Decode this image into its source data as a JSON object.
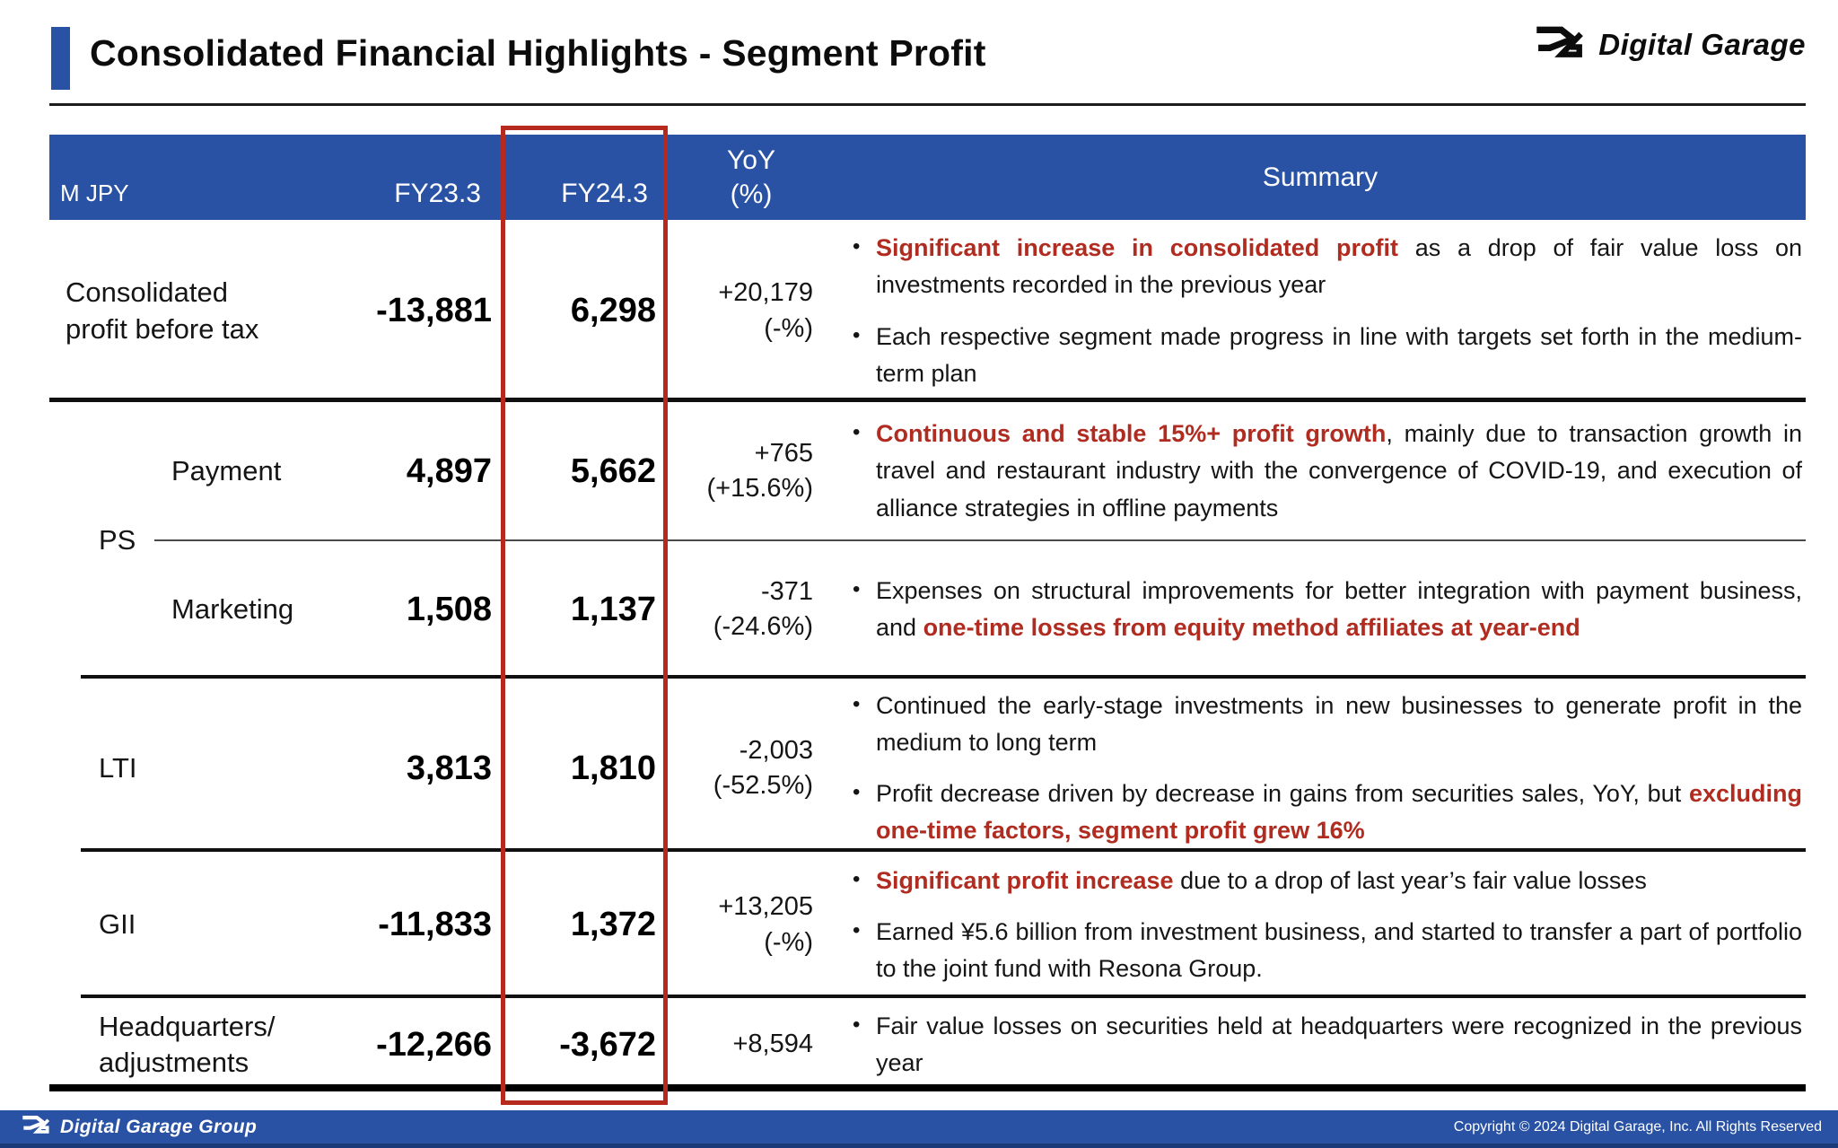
{
  "header": {
    "title": "Consolidated Financial Highlights - Segment Profit",
    "logo_text": "Digital Garage"
  },
  "table": {
    "unit_label": "M JPY",
    "columns": {
      "fy23": "FY23.3",
      "fy24": "FY24.3",
      "yoy_line1": "YoY",
      "yoy_line2": "(%)",
      "summary": "Summary"
    },
    "highlighted_column": "FY24.3",
    "ps_group_label": "PS",
    "rows": [
      {
        "label": "Consolidated\nprofit before tax",
        "fy23": "-13,881",
        "fy24": "6,298",
        "yoy": "+20,179",
        "yoy_pct": "(-%)",
        "bullets": [
          {
            "segments": [
              {
                "t": "Significant increase in consolidated profit",
                "red": true
              },
              {
                "t": " as a drop of fair value loss on investments recorded in the previous year"
              }
            ]
          },
          {
            "segments": [
              {
                "t": "Each respective segment made progress in line with targets set forth in the medium-term plan"
              }
            ]
          }
        ]
      },
      {
        "label": "Payment",
        "group": "PS",
        "fy23": "4,897",
        "fy24": "5,662",
        "yoy": "+765",
        "yoy_pct": "(+15.6%)",
        "bullets": [
          {
            "segments": [
              {
                "t": "Continuous and stable 15%+ profit growth",
                "red": true
              },
              {
                "t": ", mainly due to transaction growth in travel and restaurant industry with the convergence of COVID-19, and execution of alliance strategies in offline payments"
              }
            ]
          }
        ]
      },
      {
        "label": "Marketing",
        "group": "PS",
        "fy23": "1,508",
        "fy24": "1,137",
        "yoy": "-371",
        "yoy_pct": "(-24.6%)",
        "bullets": [
          {
            "segments": [
              {
                "t": "Expenses on structural improvements for better integration with payment business, and "
              },
              {
                "t": "one-time losses from equity method affiliates at year-end",
                "red": true
              }
            ]
          }
        ]
      },
      {
        "label": "LTI",
        "fy23": "3,813",
        "fy24": "1,810",
        "yoy": "-2,003",
        "yoy_pct": "(-52.5%)",
        "bullets": [
          {
            "segments": [
              {
                "t": "Continued the early-stage investments in new businesses to generate profit in the medium to long term"
              }
            ]
          },
          {
            "segments": [
              {
                "t": "Profit decrease driven by decrease in gains from securities sales, YoY, but "
              },
              {
                "t": "excluding one-time factors, segment profit grew 16%",
                "red": true
              }
            ]
          }
        ]
      },
      {
        "label": "GII",
        "fy23": "-11,833",
        "fy24": "1,372",
        "yoy": "+13,205",
        "yoy_pct": "(-%)",
        "bullets": [
          {
            "segments": [
              {
                "t": "Significant profit increase",
                "red": true
              },
              {
                "t": " due to a drop of last year’s fair value losses"
              }
            ]
          },
          {
            "segments": [
              {
                "t": "Earned ¥5.6 billion from investment business, and started to transfer a part of portfolio to the joint fund with Resona Group."
              }
            ]
          }
        ]
      },
      {
        "label": "Headquarters/\nadjustments",
        "fy23": "-12,266",
        "fy24": "-3,672",
        "yoy": "+8,594",
        "yoy_pct": "",
        "bullets": [
          {
            "segments": [
              {
                "t": "Fair value losses on securities held at headquarters were recognized in the previous year"
              }
            ]
          }
        ]
      }
    ]
  },
  "footer": {
    "logo_text": "Digital Garage Group",
    "copyright": "Copyright © 2024 Digital Garage, Inc. All Rights Reserved"
  },
  "colors": {
    "brand_blue": "#2a52a4",
    "highlight_red": "#b5291e",
    "accent_red": "#b02c20"
  }
}
